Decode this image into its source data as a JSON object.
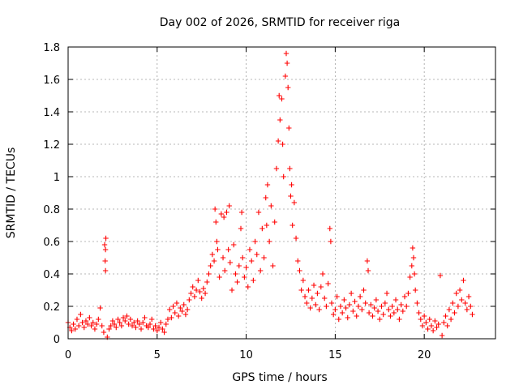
{
  "chart_data": {
    "type": "scatter",
    "title": "Day 002 of 2026, SRMTID for receiver riga",
    "xlabel": "GPS time / hours",
    "ylabel": "SRMTID / TECUs",
    "xlim": [
      0,
      24
    ],
    "ylim": [
      0,
      1.8
    ],
    "xticks": [
      0,
      5,
      10,
      15,
      20
    ],
    "xtick_labels": [
      "0",
      "5",
      "10",
      "15",
      "20"
    ],
    "yticks": [
      0,
      0.2,
      0.4,
      0.6,
      0.8,
      1,
      1.2,
      1.4,
      1.6,
      1.8
    ],
    "ytick_labels": [
      "0",
      "0.2",
      "0.4",
      "0.6",
      "0.8",
      "1",
      "1.2",
      "1.4",
      "1.6",
      "1.8"
    ],
    "grid": true,
    "marker": "+",
    "color": "#ff0000",
    "series": [
      {
        "name": "riga",
        "points": [
          [
            0.0,
            0.1
          ],
          [
            0.1,
            0.07
          ],
          [
            0.2,
            0.05
          ],
          [
            0.3,
            0.09
          ],
          [
            0.4,
            0.06
          ],
          [
            0.5,
            0.12
          ],
          [
            0.6,
            0.08
          ],
          [
            0.7,
            0.15
          ],
          [
            0.8,
            0.1
          ],
          [
            0.9,
            0.07
          ],
          [
            1.0,
            0.11
          ],
          [
            1.1,
            0.09
          ],
          [
            1.2,
            0.13
          ],
          [
            1.3,
            0.08
          ],
          [
            1.4,
            0.1
          ],
          [
            1.5,
            0.06
          ],
          [
            1.6,
            0.09
          ],
          [
            1.7,
            0.12
          ],
          [
            1.8,
            0.19
          ],
          [
            1.9,
            0.08
          ],
          [
            2.0,
            0.04
          ],
          [
            2.05,
            0.58
          ],
          [
            2.1,
            0.55
          ],
          [
            2.12,
            0.62
          ],
          [
            2.08,
            0.48
          ],
          [
            2.1,
            0.42
          ],
          [
            2.2,
            0.01
          ],
          [
            2.3,
            0.06
          ],
          [
            2.4,
            0.08
          ],
          [
            2.5,
            0.11
          ],
          [
            2.6,
            0.09
          ],
          [
            2.7,
            0.07
          ],
          [
            2.8,
            0.12
          ],
          [
            2.9,
            0.1
          ],
          [
            3.0,
            0.08
          ],
          [
            3.1,
            0.13
          ],
          [
            3.2,
            0.11
          ],
          [
            3.3,
            0.14
          ],
          [
            3.4,
            0.09
          ],
          [
            3.5,
            0.12
          ],
          [
            3.6,
            0.08
          ],
          [
            3.7,
            0.1
          ],
          [
            3.8,
            0.07
          ],
          [
            3.9,
            0.11
          ],
          [
            4.0,
            0.09
          ],
          [
            4.1,
            0.06
          ],
          [
            4.2,
            0.1
          ],
          [
            4.3,
            0.13
          ],
          [
            4.4,
            0.08
          ],
          [
            4.5,
            0.07
          ],
          [
            4.6,
            0.09
          ],
          [
            4.7,
            0.12
          ],
          [
            4.8,
            0.06
          ],
          [
            4.9,
            0.08
          ],
          [
            5.0,
            0.05
          ],
          [
            5.1,
            0.07
          ],
          [
            5.2,
            0.1
          ],
          [
            5.3,
            0.06
          ],
          [
            5.4,
            0.04
          ],
          [
            5.5,
            0.09
          ],
          [
            5.6,
            0.12
          ],
          [
            5.7,
            0.18
          ],
          [
            5.8,
            0.13
          ],
          [
            5.9,
            0.2
          ],
          [
            6.0,
            0.16
          ],
          [
            6.1,
            0.22
          ],
          [
            6.2,
            0.14
          ],
          [
            6.3,
            0.19
          ],
          [
            6.4,
            0.17
          ],
          [
            6.5,
            0.21
          ],
          [
            6.6,
            0.15
          ],
          [
            6.7,
            0.18
          ],
          [
            6.8,
            0.24
          ],
          [
            6.9,
            0.28
          ],
          [
            7.0,
            0.32
          ],
          [
            7.1,
            0.26
          ],
          [
            7.2,
            0.3
          ],
          [
            7.3,
            0.36
          ],
          [
            7.4,
            0.29
          ],
          [
            7.5,
            0.25
          ],
          [
            7.6,
            0.31
          ],
          [
            7.7,
            0.28
          ],
          [
            7.8,
            0.35
          ],
          [
            7.9,
            0.4
          ],
          [
            8.0,
            0.45
          ],
          [
            8.1,
            0.52
          ],
          [
            8.2,
            0.48
          ],
          [
            8.25,
            0.8
          ],
          [
            8.3,
            0.72
          ],
          [
            8.35,
            0.6
          ],
          [
            8.4,
            0.55
          ],
          [
            8.5,
            0.38
          ],
          [
            8.6,
            0.77
          ],
          [
            8.7,
            0.5
          ],
          [
            8.75,
            0.75
          ],
          [
            8.8,
            0.42
          ],
          [
            8.9,
            0.78
          ],
          [
            9.0,
            0.55
          ],
          [
            9.05,
            0.82
          ],
          [
            9.1,
            0.47
          ],
          [
            9.2,
            0.3
          ],
          [
            9.3,
            0.58
          ],
          [
            9.4,
            0.4
          ],
          [
            9.5,
            0.35
          ],
          [
            9.6,
            0.45
          ],
          [
            9.7,
            0.68
          ],
          [
            9.75,
            0.78
          ],
          [
            9.8,
            0.5
          ],
          [
            9.9,
            0.38
          ],
          [
            10.0,
            0.44
          ],
          [
            10.1,
            0.32
          ],
          [
            10.2,
            0.55
          ],
          [
            10.3,
            0.48
          ],
          [
            10.4,
            0.36
          ],
          [
            10.5,
            0.6
          ],
          [
            10.6,
            0.52
          ],
          [
            10.7,
            0.78
          ],
          [
            10.8,
            0.42
          ],
          [
            10.9,
            0.68
          ],
          [
            11.0,
            0.5
          ],
          [
            11.1,
            0.87
          ],
          [
            11.15,
            0.7
          ],
          [
            11.2,
            0.95
          ],
          [
            11.3,
            0.6
          ],
          [
            11.4,
            0.82
          ],
          [
            11.5,
            0.45
          ],
          [
            11.6,
            0.72
          ],
          [
            11.7,
            1.05
          ],
          [
            11.8,
            1.22
          ],
          [
            11.85,
            1.5
          ],
          [
            11.9,
            1.35
          ],
          [
            12.0,
            1.48
          ],
          [
            12.05,
            1.2
          ],
          [
            12.1,
            1.0
          ],
          [
            12.2,
            1.62
          ],
          [
            12.25,
            1.76
          ],
          [
            12.3,
            1.7
          ],
          [
            12.35,
            1.55
          ],
          [
            12.4,
            1.3
          ],
          [
            12.45,
            1.05
          ],
          [
            12.5,
            0.88
          ],
          [
            12.55,
            0.95
          ],
          [
            12.6,
            0.7
          ],
          [
            12.7,
            0.84
          ],
          [
            12.8,
            0.62
          ],
          [
            12.9,
            0.48
          ],
          [
            13.0,
            0.42
          ],
          [
            13.1,
            0.3
          ],
          [
            13.2,
            0.36
          ],
          [
            13.3,
            0.26
          ],
          [
            13.4,
            0.22
          ],
          [
            13.5,
            0.3
          ],
          [
            13.6,
            0.19
          ],
          [
            13.7,
            0.25
          ],
          [
            13.8,
            0.33
          ],
          [
            13.9,
            0.21
          ],
          [
            14.0,
            0.28
          ],
          [
            14.1,
            0.18
          ],
          [
            14.2,
            0.32
          ],
          [
            14.3,
            0.4
          ],
          [
            14.4,
            0.25
          ],
          [
            14.5,
            0.2
          ],
          [
            14.6,
            0.34
          ],
          [
            14.7,
            0.68
          ],
          [
            14.75,
            0.6
          ],
          [
            14.8,
            0.22
          ],
          [
            14.9,
            0.15
          ],
          [
            15.0,
            0.18
          ],
          [
            15.1,
            0.26
          ],
          [
            15.2,
            0.12
          ],
          [
            15.3,
            0.2
          ],
          [
            15.4,
            0.16
          ],
          [
            15.5,
            0.24
          ],
          [
            15.6,
            0.19
          ],
          [
            15.7,
            0.13
          ],
          [
            15.8,
            0.21
          ],
          [
            15.9,
            0.28
          ],
          [
            16.0,
            0.17
          ],
          [
            16.1,
            0.23
          ],
          [
            16.2,
            0.14
          ],
          [
            16.3,
            0.2
          ],
          [
            16.4,
            0.26
          ],
          [
            16.5,
            0.18
          ],
          [
            16.6,
            0.3
          ],
          [
            16.7,
            0.22
          ],
          [
            16.8,
            0.48
          ],
          [
            16.85,
            0.42
          ],
          [
            16.9,
            0.16
          ],
          [
            17.0,
            0.21
          ],
          [
            17.1,
            0.14
          ],
          [
            17.2,
            0.19
          ],
          [
            17.3,
            0.24
          ],
          [
            17.4,
            0.17
          ],
          [
            17.5,
            0.12
          ],
          [
            17.6,
            0.2
          ],
          [
            17.7,
            0.15
          ],
          [
            17.8,
            0.22
          ],
          [
            17.9,
            0.28
          ],
          [
            18.0,
            0.18
          ],
          [
            18.1,
            0.14
          ],
          [
            18.2,
            0.2
          ],
          [
            18.3,
            0.16
          ],
          [
            18.4,
            0.24
          ],
          [
            18.5,
            0.18
          ],
          [
            18.6,
            0.12
          ],
          [
            18.7,
            0.21
          ],
          [
            18.8,
            0.17
          ],
          [
            18.9,
            0.26
          ],
          [
            19.0,
            0.2
          ],
          [
            19.1,
            0.28
          ],
          [
            19.2,
            0.38
          ],
          [
            19.3,
            0.45
          ],
          [
            19.35,
            0.56
          ],
          [
            19.4,
            0.5
          ],
          [
            19.45,
            0.4
          ],
          [
            19.5,
            0.3
          ],
          [
            19.6,
            0.22
          ],
          [
            19.7,
            0.16
          ],
          [
            19.8,
            0.12
          ],
          [
            19.9,
            0.08
          ],
          [
            20.0,
            0.14
          ],
          [
            20.1,
            0.1
          ],
          [
            20.2,
            0.06
          ],
          [
            20.3,
            0.12
          ],
          [
            20.4,
            0.08
          ],
          [
            20.5,
            0.05
          ],
          [
            20.6,
            0.11
          ],
          [
            20.7,
            0.07
          ],
          [
            20.8,
            0.09
          ],
          [
            20.9,
            0.39
          ],
          [
            21.0,
            0.02
          ],
          [
            21.1,
            0.1
          ],
          [
            21.2,
            0.14
          ],
          [
            21.3,
            0.08
          ],
          [
            21.4,
            0.18
          ],
          [
            21.5,
            0.12
          ],
          [
            21.6,
            0.22
          ],
          [
            21.7,
            0.16
          ],
          [
            21.8,
            0.28
          ],
          [
            21.9,
            0.2
          ],
          [
            22.0,
            0.3
          ],
          [
            22.1,
            0.24
          ],
          [
            22.2,
            0.36
          ],
          [
            22.3,
            0.22
          ],
          [
            22.4,
            0.18
          ],
          [
            22.5,
            0.26
          ],
          [
            22.6,
            0.2
          ],
          [
            22.7,
            0.15
          ]
        ]
      }
    ]
  }
}
